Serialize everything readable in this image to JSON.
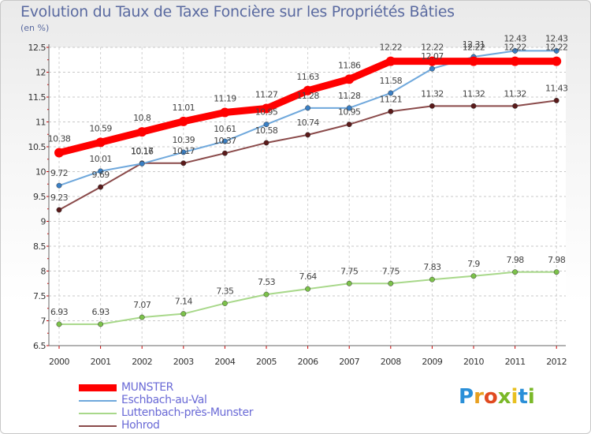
{
  "title": "Evolution du Taux de Taxe Foncière sur les Propriétés Bâties",
  "unit_label": "(en %)",
  "logo": {
    "letters": [
      "P",
      "r",
      "o",
      "x",
      "i",
      "t",
      "i"
    ],
    "colors": [
      "#2a8fd8",
      "#e8a020",
      "#e04a20",
      "#7ab828",
      "#e8c020",
      "#2a8fd8",
      "#7ab828"
    ]
  },
  "chart_data": {
    "type": "line",
    "title": "Evolution du Taux de Taxe Foncière sur les Propriétés Bâties",
    "ylabel": "(en %)",
    "x": [
      "2000",
      "2001",
      "2002",
      "2003",
      "2004",
      "2005",
      "2006",
      "2007",
      "2008",
      "2009",
      "2010",
      "2011",
      "2012"
    ],
    "ylim": [
      6.5,
      12.5
    ],
    "yticks": [
      "6.5",
      "7",
      "7.5",
      "8",
      "8.5",
      "9",
      "9.5",
      "10",
      "10.5",
      "11",
      "11.5",
      "12",
      "12.5"
    ],
    "grid": true,
    "legend_position": "bottom-left",
    "series": [
      {
        "name": "MUNSTER",
        "color": "#ff0000",
        "style": "thick",
        "values": [
          10.38,
          10.59,
          10.8,
          11.01,
          11.19,
          11.27,
          11.63,
          11.86,
          12.22,
          12.22,
          12.22,
          12.22,
          12.22
        ],
        "labels": [
          "10.38",
          "10.59",
          "10.8",
          "11.01",
          "11.19",
          "11.27",
          "11.63",
          "11.86",
          "12.22",
          "12.22",
          "12.22",
          "12.22",
          "12.22"
        ]
      },
      {
        "name": "Eschbach-au-Val",
        "color": "#6fa8dc",
        "marker": "#3a7fc4",
        "values": [
          9.72,
          10.01,
          10.16,
          10.39,
          10.61,
          10.95,
          11.28,
          11.28,
          11.58,
          12.07,
          12.31,
          12.43,
          12.43
        ],
        "labels": [
          "9.72",
          "10.01",
          "10.16",
          "10.39",
          "10.61",
          "10.95",
          "11.28",
          "11.28",
          "11.58",
          "12.07",
          "12.31",
          "12.43",
          "12.43"
        ]
      },
      {
        "name": "Luttenbach-près-Munster",
        "color": "#a8d88a",
        "marker": "#7cc24a",
        "values": [
          6.93,
          6.93,
          7.07,
          7.14,
          7.35,
          7.53,
          7.64,
          7.75,
          7.75,
          7.83,
          7.9,
          7.98,
          7.98
        ],
        "labels": [
          "6.93",
          "6.93",
          "7.07",
          "7.14",
          "7.35",
          "7.53",
          "7.64",
          "7.75",
          "7.75",
          "7.83",
          "7.9",
          "7.98",
          "7.98"
        ]
      },
      {
        "name": "Hohrod",
        "color": "#8a4a4a",
        "marker": "#5a1a1a",
        "values": [
          9.23,
          9.69,
          10.17,
          10.17,
          10.37,
          10.58,
          10.74,
          10.95,
          11.21,
          11.32,
          11.32,
          11.32,
          11.43
        ],
        "labels": [
          "9.23",
          "9.69",
          "10.17",
          "10.17",
          "10.37",
          "10.58",
          "10.74",
          "10.95",
          "11.21",
          "11.32",
          "11.32",
          "11.32",
          "11.43"
        ]
      }
    ]
  }
}
